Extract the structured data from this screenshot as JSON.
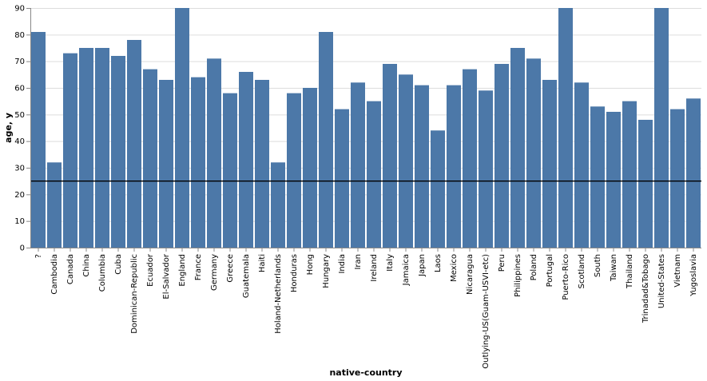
{
  "chart_data": {
    "type": "bar",
    "xlabel": "native-country",
    "ylabel": "age, y",
    "ylim": [
      0,
      90
    ],
    "yticks": [
      0,
      10,
      20,
      30,
      40,
      50,
      60,
      70,
      80,
      90
    ],
    "grid": true,
    "bar_color": "#4c78a8",
    "rule": {
      "y": 25,
      "color": "#000000"
    },
    "categories": [
      "?",
      "Cambodia",
      "Canada",
      "China",
      "Columbia",
      "Cuba",
      "Dominican-Republic",
      "Ecuador",
      "El-Salvador",
      "England",
      "France",
      "Germany",
      "Greece",
      "Guatemala",
      "Haiti",
      "Holand-Netherlands",
      "Honduras",
      "Hong",
      "Hungary",
      "India",
      "Iran",
      "Ireland",
      "Italy",
      "Jamaica",
      "Japan",
      "Laos",
      "Mexico",
      "Nicaragua",
      "Outlying-US(Guam-USVI-etc)",
      "Peru",
      "Philippines",
      "Poland",
      "Portugal",
      "Puerto-Rico",
      "Scotland",
      "South",
      "Taiwan",
      "Thailand",
      "Trinadad&Tobago",
      "United-States",
      "Vietnam",
      "Yugoslavia"
    ],
    "values": [
      81,
      32,
      73,
      75,
      75,
      72,
      78,
      67,
      63,
      90,
      64,
      71,
      58,
      66,
      63,
      32,
      58,
      60,
      81,
      52,
      62,
      55,
      69,
      65,
      61,
      44,
      61,
      67,
      59,
      69,
      75,
      71,
      63,
      90,
      62,
      53,
      51,
      55,
      48,
      90,
      52,
      56
    ]
  }
}
